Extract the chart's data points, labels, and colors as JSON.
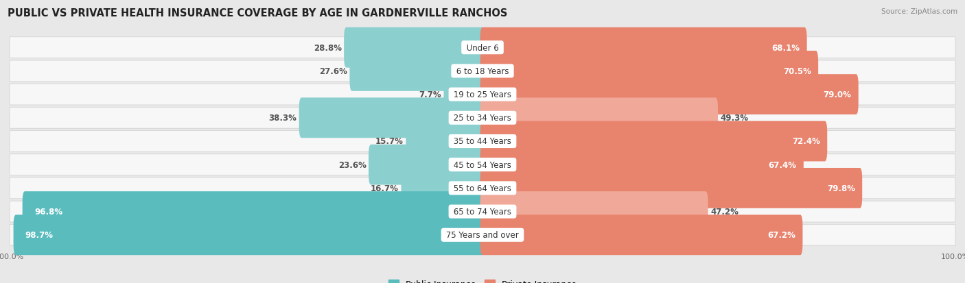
{
  "title": "PUBLIC VS PRIVATE HEALTH INSURANCE COVERAGE BY AGE IN GARDNERVILLE RANCHOS",
  "source": "Source: ZipAtlas.com",
  "categories": [
    "Under 6",
    "6 to 18 Years",
    "19 to 25 Years",
    "25 to 34 Years",
    "35 to 44 Years",
    "45 to 54 Years",
    "55 to 64 Years",
    "65 to 74 Years",
    "75 Years and over"
  ],
  "public_values": [
    28.8,
    27.6,
    7.7,
    38.3,
    15.7,
    23.6,
    16.7,
    96.8,
    98.7
  ],
  "private_values": [
    68.1,
    70.5,
    79.0,
    49.3,
    72.4,
    67.4,
    79.8,
    47.2,
    67.2
  ],
  "public_color": "#5bbcbe",
  "private_color": "#e8836e",
  "public_light_color": "#8ccfcf",
  "private_light_color": "#f0a898",
  "background_color": "#e8e8e8",
  "row_bg_color": "#f7f7f7",
  "row_border_color": "#d0d0d0",
  "title_fontsize": 10.5,
  "label_fontsize": 8.5,
  "axis_fontsize": 8,
  "legend_fontsize": 9,
  "source_fontsize": 7.5
}
